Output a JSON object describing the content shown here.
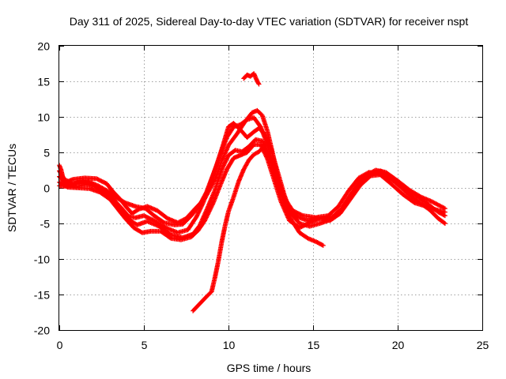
{
  "chart_data": {
    "type": "scatter",
    "title": "Day 311 of 2025, Sidereal Day-to-day VTEC variation (SDTVAR) for receiver nspt",
    "xlabel": "GPS time / hours",
    "ylabel": "SDTVAR / TECUs",
    "xlim": [
      0,
      25
    ],
    "ylim": [
      -20,
      20
    ],
    "xticks": [
      0,
      5,
      10,
      15,
      20,
      25
    ],
    "yticks": [
      -20,
      -15,
      -10,
      -5,
      0,
      5,
      10,
      15,
      20
    ],
    "grid": true,
    "marker": "+",
    "color": "#ff0000",
    "series": [
      {
        "name": "track-1",
        "points": [
          [
            0.0,
            3.2
          ],
          [
            0.1,
            2.6
          ],
          [
            0.2,
            1.6
          ],
          [
            0.4,
            0.8
          ],
          [
            0.8,
            1.2
          ],
          [
            1.5,
            1.4
          ],
          [
            2.2,
            1.3
          ],
          [
            2.8,
            0.6
          ],
          [
            3.2,
            -0.6
          ],
          [
            3.6,
            -1.6
          ],
          [
            4.0,
            -2.8
          ],
          [
            4.3,
            -3.6
          ],
          [
            4.7,
            -3.0
          ],
          [
            5.2,
            -2.6
          ],
          [
            5.8,
            -3.2
          ],
          [
            6.4,
            -4.3
          ],
          [
            7.0,
            -4.9
          ],
          [
            7.5,
            -4.3
          ],
          [
            8.0,
            -3.0
          ],
          [
            8.6,
            -1.5
          ],
          [
            9.2,
            1.2
          ],
          [
            9.6,
            3.8
          ],
          [
            10.0,
            6.0
          ],
          [
            10.5,
            7.6
          ],
          [
            11.0,
            9.4
          ],
          [
            11.4,
            10.6
          ],
          [
            11.7,
            10.9
          ],
          [
            12.0,
            10.2
          ],
          [
            12.3,
            8.0
          ],
          [
            12.6,
            5.0
          ],
          [
            12.9,
            1.6
          ],
          [
            13.3,
            -1.4
          ],
          [
            13.8,
            -3.2
          ],
          [
            14.4,
            -3.9
          ],
          [
            15.0,
            -4.1
          ],
          [
            15.6,
            -4.4
          ],
          [
            16.2,
            -4.0
          ],
          [
            16.8,
            -2.6
          ],
          [
            17.4,
            -0.4
          ],
          [
            18.0,
            1.6
          ],
          [
            18.7,
            2.5
          ],
          [
            19.3,
            2.2
          ],
          [
            20.0,
            1.0
          ],
          [
            20.7,
            -0.3
          ],
          [
            21.4,
            -1.3
          ],
          [
            22.0,
            -1.9
          ],
          [
            22.8,
            -2.9
          ]
        ]
      },
      {
        "name": "track-2",
        "points": [
          [
            0.0,
            2.4
          ],
          [
            0.3,
            1.2
          ],
          [
            0.8,
            0.6
          ],
          [
            1.4,
            0.9
          ],
          [
            2.0,
            0.5
          ],
          [
            2.6,
            -0.4
          ],
          [
            3.2,
            -1.6
          ],
          [
            3.7,
            -2.9
          ],
          [
            4.1,
            -4.0
          ],
          [
            4.5,
            -4.2
          ],
          [
            5.0,
            -3.9
          ],
          [
            5.6,
            -4.6
          ],
          [
            6.3,
            -5.6
          ],
          [
            7.0,
            -6.3
          ],
          [
            7.6,
            -5.9
          ],
          [
            8.1,
            -4.1
          ],
          [
            8.5,
            -2.1
          ],
          [
            8.9,
            0.6
          ],
          [
            9.3,
            3.2
          ],
          [
            9.7,
            6.2
          ],
          [
            10.0,
            8.6
          ],
          [
            10.3,
            9.1
          ],
          [
            10.7,
            8.2
          ],
          [
            11.1,
            7.1
          ],
          [
            11.5,
            7.9
          ],
          [
            11.8,
            8.4
          ],
          [
            12.1,
            7.7
          ],
          [
            12.5,
            5.6
          ],
          [
            12.9,
            2.3
          ],
          [
            13.3,
            -1.0
          ],
          [
            13.7,
            -3.6
          ],
          [
            14.2,
            -5.0
          ],
          [
            14.8,
            -5.4
          ],
          [
            15.4,
            -5.0
          ],
          [
            16.0,
            -4.5
          ],
          [
            16.6,
            -3.2
          ],
          [
            17.2,
            -1.0
          ],
          [
            17.8,
            1.0
          ],
          [
            18.4,
            2.1
          ],
          [
            19.0,
            2.4
          ],
          [
            19.7,
            1.3
          ],
          [
            20.4,
            0.0
          ],
          [
            21.1,
            -1.1
          ],
          [
            21.8,
            -2.3
          ],
          [
            22.4,
            -3.4
          ],
          [
            22.8,
            -3.9
          ]
        ]
      },
      {
        "name": "track-3",
        "points": [
          [
            0.0,
            1.6
          ],
          [
            0.4,
            0.6
          ],
          [
            1.0,
            0.2
          ],
          [
            1.6,
            0.5
          ],
          [
            2.2,
            0.1
          ],
          [
            2.8,
            -0.9
          ],
          [
            3.3,
            -2.3
          ],
          [
            3.8,
            -3.6
          ],
          [
            4.2,
            -4.6
          ],
          [
            4.6,
            -5.2
          ],
          [
            5.2,
            -4.7
          ],
          [
            5.9,
            -5.4
          ],
          [
            6.6,
            -6.6
          ],
          [
            7.3,
            -7.0
          ],
          [
            7.9,
            -6.5
          ],
          [
            8.3,
            -5.3
          ],
          [
            8.8,
            -2.6
          ],
          [
            9.2,
            -0.3
          ],
          [
            9.6,
            2.6
          ],
          [
            10.0,
            4.6
          ],
          [
            10.4,
            5.3
          ],
          [
            10.8,
            5.1
          ],
          [
            11.2,
            5.8
          ],
          [
            11.6,
            6.8
          ],
          [
            12.0,
            6.6
          ],
          [
            12.4,
            4.6
          ],
          [
            12.8,
            1.6
          ],
          [
            13.2,
            -1.6
          ],
          [
            13.7,
            -4.4
          ],
          [
            14.2,
            -6.3
          ],
          [
            14.7,
            -7.1
          ],
          [
            15.2,
            -7.6
          ],
          [
            15.6,
            -8.1
          ]
        ]
      },
      {
        "name": "track-4",
        "points": [
          [
            0.0,
            0.8
          ],
          [
            0.5,
            0.1
          ],
          [
            1.2,
            0.0
          ],
          [
            1.8,
            -0.1
          ],
          [
            2.4,
            -0.6
          ],
          [
            3.0,
            -1.6
          ],
          [
            3.5,
            -3.1
          ],
          [
            3.9,
            -4.3
          ],
          [
            4.4,
            -5.6
          ],
          [
            4.9,
            -6.3
          ],
          [
            5.4,
            -6.1
          ],
          [
            6.0,
            -6.1
          ],
          [
            6.6,
            -7.1
          ],
          [
            7.2,
            -7.3
          ],
          [
            7.8,
            -6.9
          ],
          [
            8.2,
            -6.0
          ],
          [
            8.6,
            -4.6
          ],
          [
            9.1,
            -2.1
          ],
          [
            9.5,
            0.3
          ],
          [
            9.9,
            2.6
          ],
          [
            10.3,
            4.2
          ],
          [
            10.7,
            4.6
          ],
          [
            11.1,
            5.0
          ],
          [
            11.5,
            6.1
          ],
          [
            11.9,
            6.1
          ],
          [
            12.3,
            4.1
          ],
          [
            12.7,
            1.1
          ],
          [
            13.1,
            -1.9
          ],
          [
            13.6,
            -4.6
          ],
          [
            14.2,
            -5.6
          ],
          [
            14.8,
            -4.9
          ],
          [
            15.4,
            -4.3
          ],
          [
            16.0,
            -4.6
          ],
          [
            16.6,
            -3.6
          ],
          [
            17.2,
            -1.6
          ],
          [
            17.8,
            0.4
          ],
          [
            18.4,
            1.7
          ],
          [
            19.1,
            1.9
          ],
          [
            19.8,
            0.9
          ],
          [
            20.5,
            -0.6
          ],
          [
            21.2,
            -1.9
          ],
          [
            21.9,
            -3.1
          ],
          [
            22.4,
            -4.3
          ],
          [
            22.8,
            -5.0
          ]
        ]
      },
      {
        "name": "track-5",
        "points": [
          [
            0.0,
            0.3
          ],
          [
            0.5,
            0.2
          ],
          [
            1.1,
            0.8
          ],
          [
            1.7,
            0.9
          ],
          [
            2.3,
            0.3
          ],
          [
            2.9,
            -0.5
          ],
          [
            3.4,
            -1.4
          ],
          [
            3.9,
            -2.1
          ],
          [
            4.5,
            -2.6
          ],
          [
            5.1,
            -2.9
          ],
          [
            5.6,
            -3.9
          ],
          [
            6.2,
            -4.9
          ],
          [
            6.8,
            -5.2
          ],
          [
            7.3,
            -5.1
          ],
          [
            7.8,
            -3.9
          ],
          [
            8.3,
            -2.4
          ],
          [
            8.7,
            -0.6
          ],
          [
            9.1,
            1.9
          ],
          [
            9.5,
            4.6
          ],
          [
            9.9,
            7.1
          ],
          [
            10.3,
            8.6
          ],
          [
            10.7,
            8.9
          ],
          [
            11.1,
            9.6
          ],
          [
            11.5,
            9.9
          ],
          [
            11.9,
            8.6
          ],
          [
            12.3,
            6.1
          ],
          [
            12.7,
            2.6
          ],
          [
            13.1,
            -0.6
          ],
          [
            13.6,
            -3.1
          ],
          [
            14.1,
            -4.1
          ],
          [
            14.7,
            -4.6
          ],
          [
            15.3,
            -4.1
          ],
          [
            15.9,
            -3.9
          ],
          [
            16.5,
            -2.6
          ],
          [
            17.1,
            -0.4
          ],
          [
            17.7,
            1.4
          ],
          [
            18.3,
            2.2
          ],
          [
            18.9,
            2.0
          ],
          [
            19.6,
            0.6
          ],
          [
            20.3,
            -0.9
          ],
          [
            21.0,
            -2.1
          ],
          [
            21.7,
            -2.6
          ],
          [
            22.3,
            -3.1
          ],
          [
            22.8,
            -3.4
          ]
        ]
      },
      {
        "name": "track-6",
        "points": [
          [
            7.9,
            -17.3
          ],
          [
            8.3,
            -16.3
          ],
          [
            8.7,
            -15.3
          ],
          [
            9.0,
            -14.6
          ],
          [
            9.2,
            -12.6
          ],
          [
            9.4,
            -10.3
          ],
          [
            9.6,
            -7.6
          ],
          [
            9.8,
            -5.3
          ],
          [
            10.0,
            -3.3
          ],
          [
            10.3,
            -1.3
          ],
          [
            10.6,
            0.9
          ],
          [
            10.9,
            2.6
          ],
          [
            11.2,
            3.9
          ],
          [
            11.5,
            4.7
          ],
          [
            11.8,
            5.1
          ],
          [
            12.0,
            5.6
          ]
        ]
      },
      {
        "name": "track-7",
        "points": [
          [
            10.9,
            15.4
          ],
          [
            11.1,
            15.9
          ],
          [
            11.3,
            15.7
          ],
          [
            11.5,
            16.1
          ],
          [
            11.7,
            15.0
          ],
          [
            11.8,
            14.6
          ]
        ]
      }
    ]
  }
}
